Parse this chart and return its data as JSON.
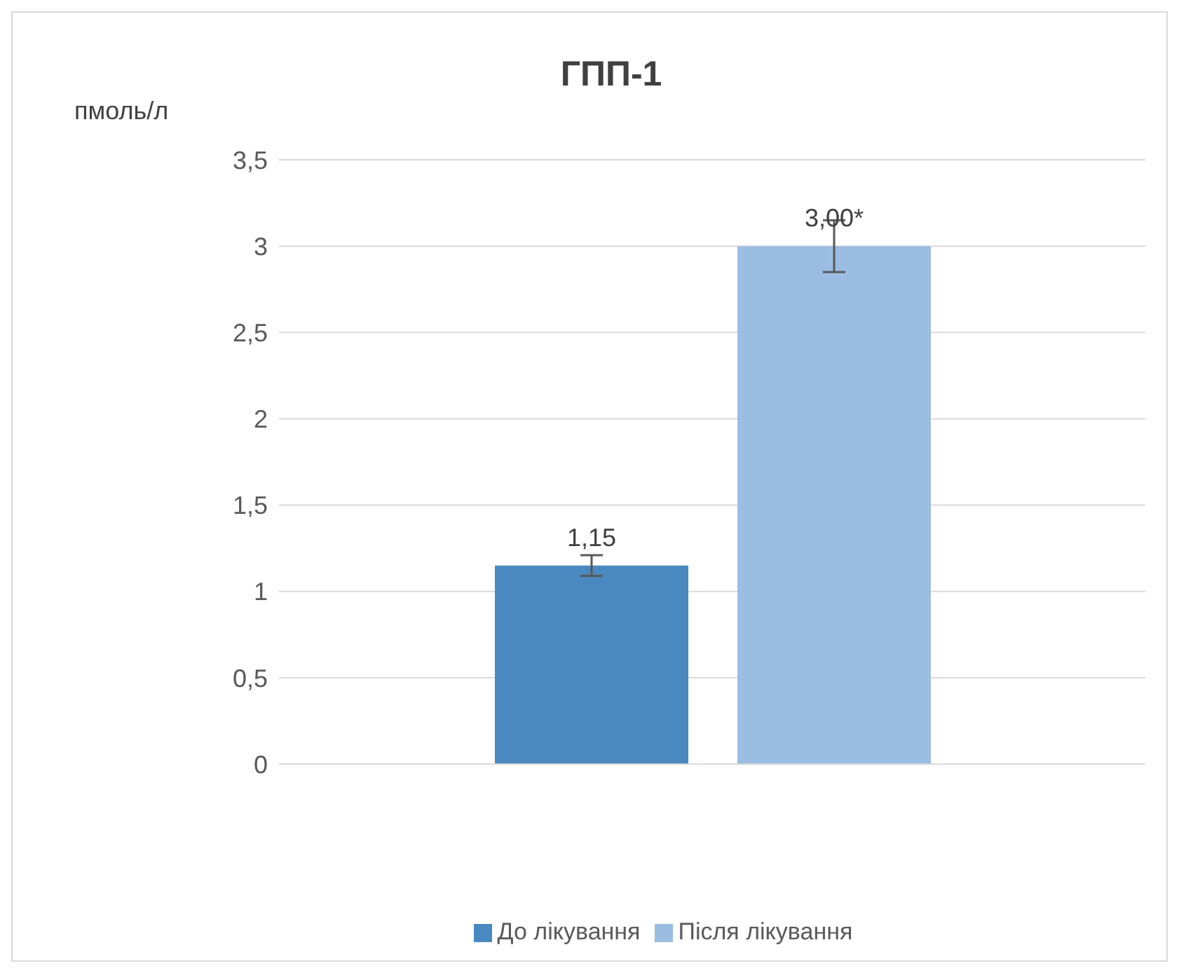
{
  "chart_data": {
    "type": "bar",
    "title": "ГПП-1",
    "ylabel": "пмоль/л",
    "categories": [
      null
    ],
    "series": [
      {
        "name": "До лікування",
        "color": "#4a89c0",
        "values": [
          1.15
        ],
        "errors": [
          0.06
        ],
        "value_labels": [
          "1,15"
        ]
      },
      {
        "name": "Після лікування",
        "color": "#9bbde2",
        "values": [
          3.0
        ],
        "errors": [
          0.15
        ],
        "value_labels": [
          "3,00*"
        ]
      }
    ],
    "ylim": [
      0,
      3.5
    ],
    "yticks": [
      {
        "value": 0,
        "label": "0"
      },
      {
        "value": 0.5,
        "label": "0,5"
      },
      {
        "value": 1,
        "label": "1"
      },
      {
        "value": 1.5,
        "label": "1,5"
      },
      {
        "value": 2,
        "label": "2"
      },
      {
        "value": 2.5,
        "label": "2,5"
      },
      {
        "value": 3,
        "label": "3"
      },
      {
        "value": 3.5,
        "label": "3,5"
      }
    ],
    "grid": "y",
    "legend": "bottom",
    "tick_labels": "y"
  }
}
